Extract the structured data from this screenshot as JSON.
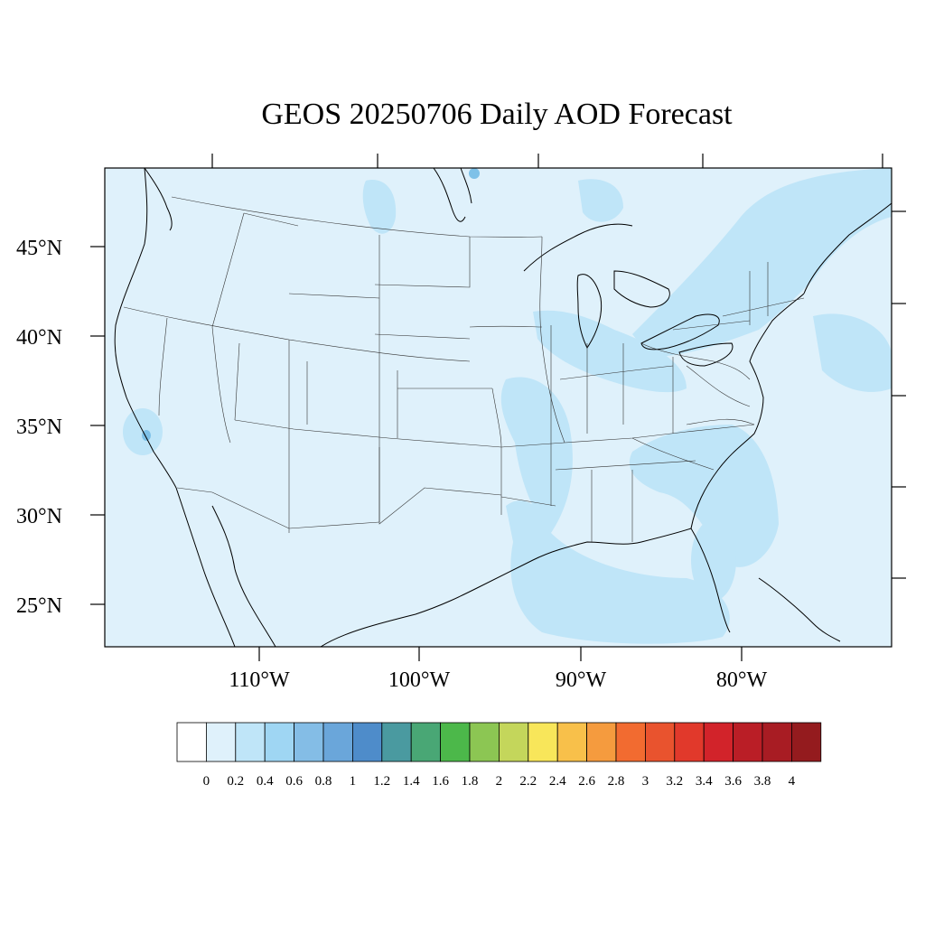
{
  "title": "GEOS 20250706 Daily AOD Forecast",
  "map": {
    "projection": "lambert-conformal",
    "lat_ticks": [
      "45°N",
      "40°N",
      "35°N",
      "30°N",
      "25°N"
    ],
    "lon_ticks": [
      "110°W",
      "100°W",
      "90°W",
      "80°W"
    ],
    "background_color": "#dff1fb",
    "plume_color": "#bfe5f8",
    "hotspot_color": "#7ec1e8",
    "border_color": "#333333",
    "coast_color": "#000000"
  },
  "colorbar": {
    "labels": [
      "0",
      "0.2",
      "0.4",
      "0.6",
      "0.8",
      "1",
      "1.2",
      "1.4",
      "1.6",
      "1.8",
      "2",
      "2.2",
      "2.4",
      "2.6",
      "2.8",
      "3",
      "3.2",
      "3.4",
      "3.6",
      "3.8",
      "4"
    ],
    "colors": [
      "#ffffff",
      "#dff1fb",
      "#bfe5f8",
      "#9fd6f3",
      "#84bde6",
      "#6aa6da",
      "#4e8cca",
      "#4a9aa0",
      "#49a775",
      "#4cb84a",
      "#8cc653",
      "#c4d65b",
      "#f8e65a",
      "#f8c04a",
      "#f59b3e",
      "#f26b30",
      "#e9532e",
      "#e1392b",
      "#d2232a",
      "#ba1e26",
      "#a81c23",
      "#941b1e"
    ]
  }
}
